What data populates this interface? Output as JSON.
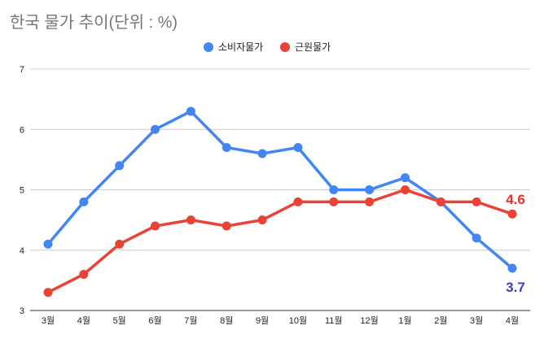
{
  "chart_data": {
    "type": "line",
    "title": "한국 물가 추이(단위 : %)",
    "xlabel": "",
    "ylabel": "",
    "categories": [
      "3월",
      "4월",
      "5월",
      "6월",
      "7월",
      "8월",
      "9월",
      "10월",
      "11월",
      "12월",
      "1월",
      "2월",
      "3월",
      "4월"
    ],
    "ylim": [
      3,
      7
    ],
    "yticks": [
      3,
      4,
      5,
      6,
      7
    ],
    "grid": true,
    "legend_placement": "top",
    "series": [
      {
        "name": "소비자물가",
        "color": "#4285f4",
        "values": [
          4.1,
          4.8,
          5.4,
          6.0,
          6.3,
          5.7,
          5.6,
          5.7,
          5.0,
          5.0,
          5.2,
          4.8,
          4.2,
          3.7
        ],
        "last_label": "3.7",
        "label_color": "#3c3cc8"
      },
      {
        "name": "근원물가",
        "color": "#ea4335",
        "values": [
          3.3,
          3.6,
          4.1,
          4.4,
          4.5,
          4.4,
          4.5,
          4.8,
          4.8,
          4.8,
          5.0,
          4.8,
          4.8,
          4.6
        ],
        "last_label": "4.6",
        "label_color": "#e8312a"
      }
    ]
  }
}
